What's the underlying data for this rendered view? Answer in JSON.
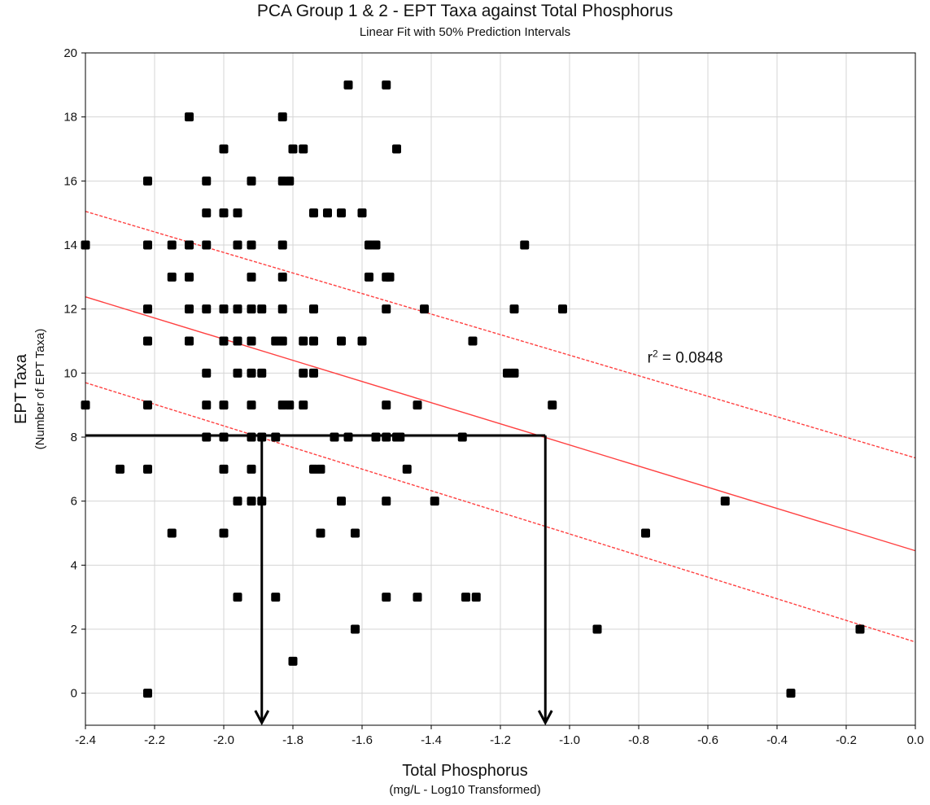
{
  "chart_data": {
    "type": "scatter",
    "title": "PCA Group 1 & 2 - EPT Taxa against Total Phosphorus",
    "subtitle": "Linear Fit with 50% Prediction Intervals",
    "xlabel": "Total Phosphorus",
    "xlabel_sub": "(mg/L - Log10 Transformed)",
    "ylabel": "EPT Taxa",
    "ylabel_sub": "(Number of EPT Taxa)",
    "xlim": [
      -2.4,
      0.0
    ],
    "ylim": [
      -1,
      20
    ],
    "x_ticks": [
      -2.4,
      -2.2,
      -2.0,
      -1.8,
      -1.6,
      -1.4,
      -1.2,
      -1.0,
      -0.8,
      -0.6,
      -0.4,
      -0.2,
      0.0
    ],
    "x_tick_labels": [
      "-2.4",
      "-2.2",
      "-2.0",
      "-1.8",
      "-1.6",
      "-1.4",
      "-1.2",
      "-1.0",
      "-0.8",
      "-0.6",
      "-0.4",
      "-0.2",
      "0.0"
    ],
    "y_ticks": [
      0,
      2,
      4,
      6,
      8,
      10,
      12,
      14,
      16,
      18,
      20
    ],
    "y_tick_labels": [
      "0",
      "2",
      "4",
      "6",
      "8",
      "10",
      "12",
      "14",
      "16",
      "18",
      "20"
    ],
    "grid": true,
    "annotation": {
      "text_prefix": "r",
      "text_exp": "2",
      "text_suffix": " = 0.0848",
      "x": -0.775,
      "y": 10.5
    },
    "fit_line": {
      "start": [
        -2.4,
        12.38
      ],
      "end": [
        0.0,
        4.45
      ],
      "color": "#ff4040"
    },
    "prediction_upper": {
      "start": [
        -2.4,
        15.05
      ],
      "end": [
        0.0,
        7.35
      ],
      "color": "#ff4040"
    },
    "prediction_lower": {
      "start": [
        -2.4,
        9.7
      ],
      "end": [
        0.0,
        1.6
      ],
      "color": "#ff4040"
    },
    "threshold_lines": {
      "color": "#000000",
      "horizontal": {
        "y": 8.05,
        "x_from": -2.4,
        "x_to": -1.07
      },
      "arrows": [
        {
          "x": -1.89,
          "y_from": 8.05,
          "y_to": -1.0
        },
        {
          "x": -1.07,
          "y_from": 8.05,
          "y_to": -1.0
        }
      ]
    },
    "points": [
      [
        -2.4,
        14
      ],
      [
        -2.4,
        9
      ],
      [
        -2.3,
        7
      ],
      [
        -2.22,
        16
      ],
      [
        -2.22,
        14
      ],
      [
        -2.22,
        12
      ],
      [
        -2.22,
        11
      ],
      [
        -2.22,
        9
      ],
      [
        -2.22,
        7
      ],
      [
        -2.22,
        0
      ],
      [
        -2.15,
        14
      ],
      [
        -2.15,
        13
      ],
      [
        -2.15,
        5
      ],
      [
        -2.1,
        18
      ],
      [
        -2.1,
        14
      ],
      [
        -2.1,
        13
      ],
      [
        -2.1,
        12
      ],
      [
        -2.1,
        11
      ],
      [
        -2.05,
        16
      ],
      [
        -2.05,
        15
      ],
      [
        -2.05,
        14
      ],
      [
        -2.05,
        12
      ],
      [
        -2.05,
        10
      ],
      [
        -2.05,
        9
      ],
      [
        -2.05,
        8
      ],
      [
        -2.0,
        17
      ],
      [
        -2.0,
        15
      ],
      [
        -2.0,
        12
      ],
      [
        -2.0,
        11
      ],
      [
        -2.0,
        9
      ],
      [
        -2.0,
        8
      ],
      [
        -2.0,
        7
      ],
      [
        -2.0,
        5
      ],
      [
        -1.96,
        15
      ],
      [
        -1.96,
        14
      ],
      [
        -1.96,
        12
      ],
      [
        -1.96,
        11
      ],
      [
        -1.96,
        10
      ],
      [
        -1.96,
        6
      ],
      [
        -1.96,
        3
      ],
      [
        -1.92,
        16
      ],
      [
        -1.92,
        14
      ],
      [
        -1.92,
        13
      ],
      [
        -1.92,
        12
      ],
      [
        -1.92,
        11
      ],
      [
        -1.92,
        10
      ],
      [
        -1.92,
        9
      ],
      [
        -1.92,
        8
      ],
      [
        -1.92,
        7
      ],
      [
        -1.92,
        6
      ],
      [
        -1.89,
        12
      ],
      [
        -1.89,
        10
      ],
      [
        -1.89,
        8
      ],
      [
        -1.89,
        6
      ],
      [
        -1.85,
        11
      ],
      [
        -1.85,
        8
      ],
      [
        -1.85,
        3
      ],
      [
        -1.83,
        18
      ],
      [
        -1.83,
        16
      ],
      [
        -1.83,
        14
      ],
      [
        -1.83,
        13
      ],
      [
        -1.83,
        12
      ],
      [
        -1.83,
        11
      ],
      [
        -1.83,
        9
      ],
      [
        -1.81,
        16
      ],
      [
        -1.81,
        9
      ],
      [
        -1.8,
        17
      ],
      [
        -1.8,
        1
      ],
      [
        -1.77,
        17
      ],
      [
        -1.77,
        11
      ],
      [
        -1.77,
        10
      ],
      [
        -1.77,
        9
      ],
      [
        -1.74,
        15
      ],
      [
        -1.74,
        12
      ],
      [
        -1.74,
        11
      ],
      [
        -1.74,
        10
      ],
      [
        -1.74,
        7
      ],
      [
        -1.72,
        7
      ],
      [
        -1.72,
        5
      ],
      [
        -1.7,
        15
      ],
      [
        -1.68,
        8
      ],
      [
        -1.66,
        15
      ],
      [
        -1.66,
        11
      ],
      [
        -1.66,
        6
      ],
      [
        -1.64,
        19
      ],
      [
        -1.64,
        8
      ],
      [
        -1.62,
        5
      ],
      [
        -1.62,
        2
      ],
      [
        -1.6,
        15
      ],
      [
        -1.6,
        11
      ],
      [
        -1.58,
        14
      ],
      [
        -1.58,
        13
      ],
      [
        -1.56,
        14
      ],
      [
        -1.56,
        8
      ],
      [
        -1.53,
        19
      ],
      [
        -1.53,
        13
      ],
      [
        -1.53,
        12
      ],
      [
        -1.53,
        9
      ],
      [
        -1.53,
        8
      ],
      [
        -1.53,
        6
      ],
      [
        -1.53,
        3
      ],
      [
        -1.52,
        13
      ],
      [
        -1.5,
        17
      ],
      [
        -1.5,
        8
      ],
      [
        -1.49,
        8
      ],
      [
        -1.47,
        7
      ],
      [
        -1.44,
        9
      ],
      [
        -1.44,
        3
      ],
      [
        -1.42,
        12
      ],
      [
        -1.39,
        6
      ],
      [
        -1.31,
        8
      ],
      [
        -1.3,
        3
      ],
      [
        -1.28,
        11
      ],
      [
        -1.27,
        3
      ],
      [
        -1.18,
        10
      ],
      [
        -1.16,
        12
      ],
      [
        -1.16,
        10
      ],
      [
        -1.13,
        14
      ],
      [
        -1.05,
        9
      ],
      [
        -1.02,
        12
      ],
      [
        -0.92,
        2
      ],
      [
        -0.78,
        5
      ],
      [
        -0.55,
        6
      ],
      [
        -0.36,
        0
      ],
      [
        -0.16,
        2
      ]
    ]
  }
}
